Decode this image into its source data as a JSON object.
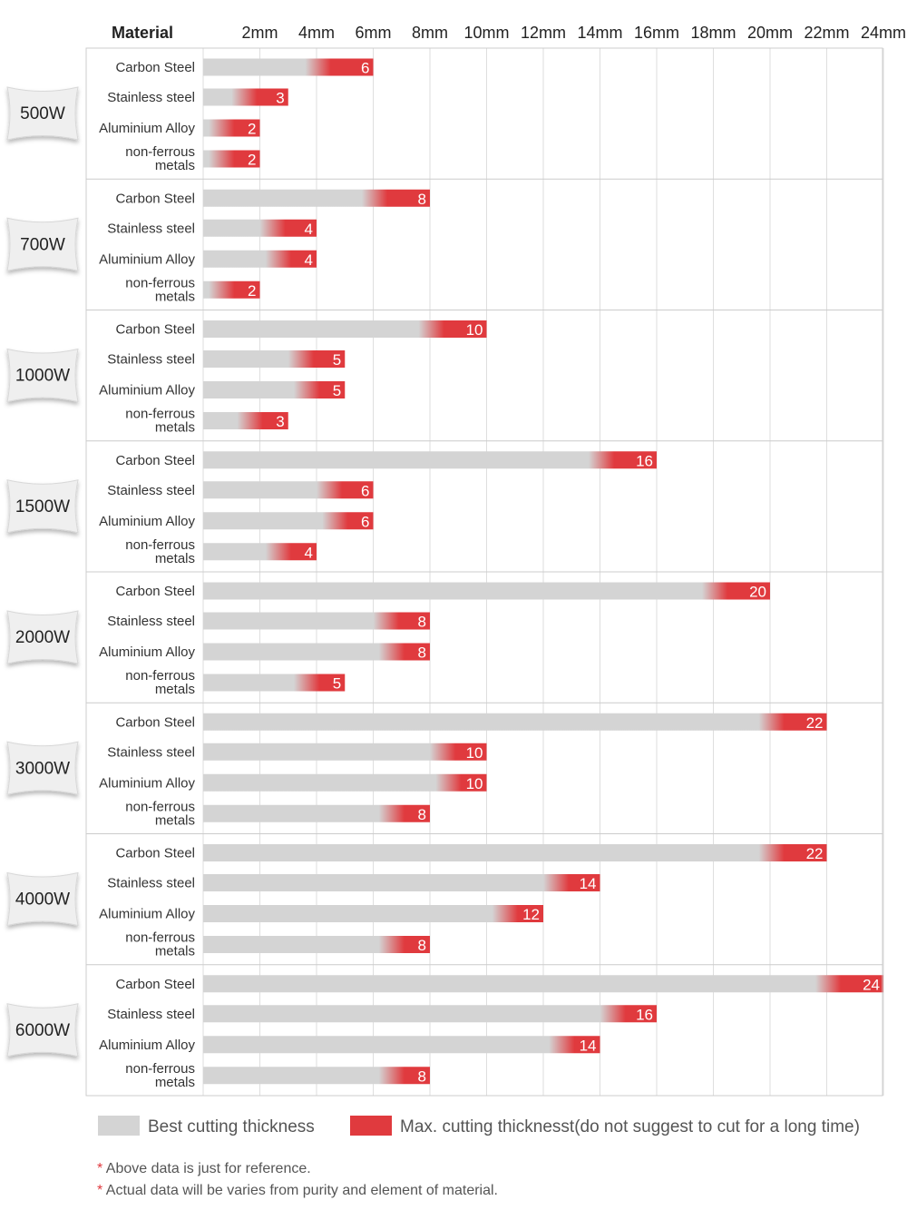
{
  "chart_data": {
    "type": "bar",
    "header": "Material",
    "x_ticks": [
      "2mm",
      "4mm",
      "6mm",
      "8mm",
      "10mm",
      "12mm",
      "14mm",
      "16mm",
      "18mm",
      "20mm",
      "22mm",
      "24mm"
    ],
    "xlim": [
      0,
      24
    ],
    "grid": true,
    "legend_position": "bottom",
    "colors": {
      "best": "#d4d4d4",
      "max": "#e03a3e"
    },
    "groups": [
      {
        "power": "500W",
        "rows": [
          {
            "material": "Carbon Steel",
            "max": 6
          },
          {
            "material": "Stainless steel",
            "max": 3
          },
          {
            "material": "Aluminium Alloy",
            "max": 2
          },
          {
            "material": "non-ferrous\nmetals",
            "max": 2
          }
        ]
      },
      {
        "power": "700W",
        "rows": [
          {
            "material": "Carbon Steel",
            "max": 8
          },
          {
            "material": "Stainless steel",
            "max": 4
          },
          {
            "material": "Aluminium Alloy",
            "max": 4
          },
          {
            "material": "non-ferrous\nmetals",
            "max": 2
          }
        ]
      },
      {
        "power": "1000W",
        "rows": [
          {
            "material": "Carbon Steel",
            "max": 10
          },
          {
            "material": "Stainless steel",
            "max": 5
          },
          {
            "material": "Aluminium Alloy",
            "max": 5
          },
          {
            "material": "non-ferrous\nmetals",
            "max": 3
          }
        ]
      },
      {
        "power": "1500W",
        "rows": [
          {
            "material": "Carbon Steel",
            "max": 16
          },
          {
            "material": "Stainless steel",
            "max": 6
          },
          {
            "material": "Aluminium Alloy",
            "max": 6
          },
          {
            "material": "non-ferrous\nmetals",
            "max": 4
          }
        ]
      },
      {
        "power": "2000W",
        "rows": [
          {
            "material": "Carbon Steel",
            "max": 20
          },
          {
            "material": "Stainless steel",
            "max": 8
          },
          {
            "material": "Aluminium Alloy",
            "max": 8
          },
          {
            "material": "non-ferrous\nmetals",
            "max": 5
          }
        ]
      },
      {
        "power": "3000W",
        "rows": [
          {
            "material": "Carbon Steel",
            "max": 22
          },
          {
            "material": "Stainless steel",
            "max": 10
          },
          {
            "material": "Aluminium Alloy",
            "max": 10
          },
          {
            "material": "non-ferrous\nmetals",
            "max": 8
          }
        ]
      },
      {
        "power": "4000W",
        "rows": [
          {
            "material": "Carbon Steel",
            "max": 22
          },
          {
            "material": "Stainless steel",
            "max": 14
          },
          {
            "material": "Aluminium Alloy",
            "max": 12
          },
          {
            "material": "non-ferrous\nmetals",
            "max": 8
          }
        ]
      },
      {
        "power": "6000W",
        "rows": [
          {
            "material": "Carbon Steel",
            "max": 24
          },
          {
            "material": "Stainless steel",
            "max": 16
          },
          {
            "material": "Aluminium Alloy",
            "max": 14
          },
          {
            "material": "non-ferrous\nmetals",
            "max": 8
          }
        ]
      }
    ]
  },
  "legend": {
    "best_label": "Best cutting thickness",
    "max_label": "Max. cutting thicknesst(do not suggest to cut for a long time)"
  },
  "notes": [
    {
      "star": "*",
      "text": " Above data is just for reference."
    },
    {
      "star": "*",
      "text": " Actual data will be varies from purity and element of material."
    }
  ]
}
